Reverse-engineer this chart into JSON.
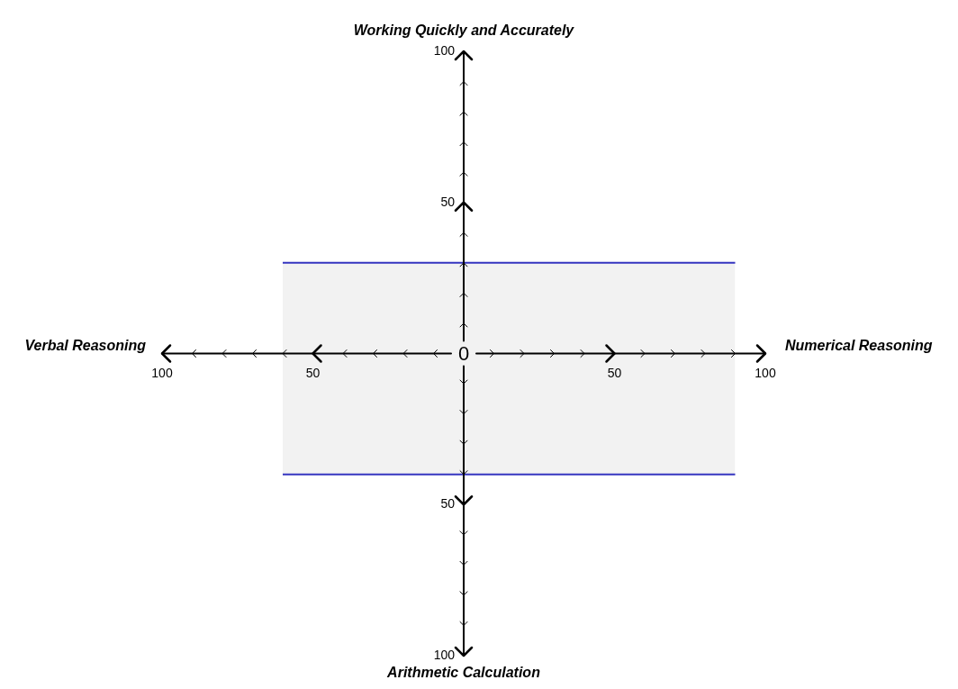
{
  "chart_data": {
    "type": "area",
    "xlabel": "Numerical Reasoning",
    "ylabel": "Working Quickly and Accurately",
    "annotations": [
      "Verbal Reasoning",
      "Arithmetic Calculation",
      "0"
    ],
    "x": [
      -60,
      90
    ],
    "series": [
      {
        "color": "#3535c0",
        "values": [
          30,
          30
        ]
      },
      {
        "color": "#3535c0",
        "values": [
          -40,
          -40
        ]
      }
    ],
    "xlim": [
      -100,
      100
    ],
    "ylim": [
      -100,
      100
    ],
    "xticks": [
      {
        "value": -100,
        "label": "100"
      },
      {
        "value": -50,
        "label": "50"
      },
      50,
      100
    ],
    "yticks": [
      {
        "value": -100,
        "label": "100"
      },
      {
        "value": -50,
        "label": "50"
      },
      50,
      100
    ]
  }
}
